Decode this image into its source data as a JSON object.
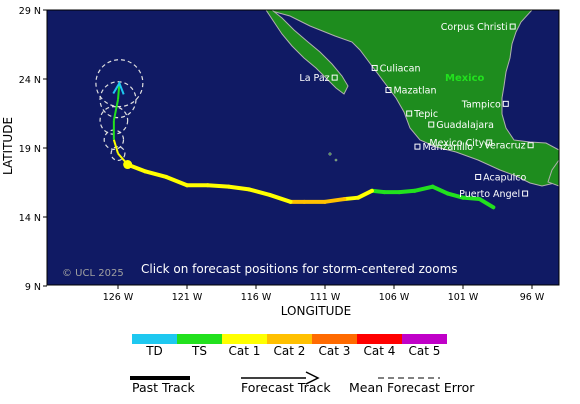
{
  "map": {
    "click_hint": "Click on forecast positions for storm-centered zooms",
    "copyright": "© UCL 2025",
    "xlabel": "LONGITUDE",
    "ylabel": "LATITUDE",
    "lat_ticks": [
      "29 N",
      "24 N",
      "19 N",
      "14 N",
      "9 N"
    ],
    "lon_ticks": [
      "126 W",
      "121 W",
      "116 W",
      "111 W",
      "106 W",
      "101 W",
      "96 W"
    ],
    "country_label": "Mexico",
    "colors": {
      "ocean": "#101a64",
      "land": "#1e8c1e",
      "coast": "#b0b0b0"
    },
    "cities": [
      {
        "name": "Corpus Christi",
        "lon": -97.4,
        "lat": 27.8
      },
      {
        "name": "Culiacan",
        "lon": -107.4,
        "lat": 24.8
      },
      {
        "name": "La Paz",
        "lon": -110.3,
        "lat": 24.1
      },
      {
        "name": "Mazatlan",
        "lon": -106.4,
        "lat": 23.2
      },
      {
        "name": "Tampico",
        "lon": -97.9,
        "lat": 22.2
      },
      {
        "name": "Tepic",
        "lon": -104.9,
        "lat": 21.5
      },
      {
        "name": "Guadalajara",
        "lon": -103.3,
        "lat": 20.7
      },
      {
        "name": "Mexico City",
        "lon": -99.1,
        "lat": 19.4
      },
      {
        "name": "Manzanillo",
        "lon": -104.3,
        "lat": 19.1
      },
      {
        "name": "Veracruz",
        "lon": -96.1,
        "lat": 19.2
      },
      {
        "name": "Acapulco",
        "lon": -99.9,
        "lat": 16.9
      },
      {
        "name": "Puerto Angel",
        "lon": -96.5,
        "lat": 15.7
      }
    ]
  },
  "track": {
    "past": [
      {
        "lon": -98.8,
        "lat": 14.7,
        "cat": "TS"
      },
      {
        "lon": -99.8,
        "lat": 15.3,
        "cat": "TS"
      },
      {
        "lon": -101.0,
        "lat": 15.4,
        "cat": "TS"
      },
      {
        "lon": -102.1,
        "lat": 15.7,
        "cat": "TS"
      },
      {
        "lon": -103.2,
        "lat": 16.2,
        "cat": "TS"
      },
      {
        "lon": -104.5,
        "lat": 15.9,
        "cat": "TS"
      },
      {
        "lon": -105.6,
        "lat": 15.8,
        "cat": "TS"
      },
      {
        "lon": -106.7,
        "lat": 15.8,
        "cat": "TS"
      },
      {
        "lon": -107.6,
        "lat": 15.9,
        "cat": "Cat 1"
      },
      {
        "lon": -108.6,
        "lat": 15.4,
        "cat": "Cat 1"
      },
      {
        "lon": -109.6,
        "lat": 15.3,
        "cat": "Cat 2"
      },
      {
        "lon": -111.0,
        "lat": 15.1,
        "cat": "Cat 2"
      },
      {
        "lon": -112.5,
        "lat": 15.1,
        "cat": "Cat 2"
      },
      {
        "lon": -113.5,
        "lat": 15.1,
        "cat": "Cat 1"
      },
      {
        "lon": -115.0,
        "lat": 15.6,
        "cat": "Cat 1"
      },
      {
        "lon": -116.5,
        "lat": 16.0,
        "cat": "Cat 1"
      },
      {
        "lon": -118.0,
        "lat": 16.2,
        "cat": "Cat 1"
      },
      {
        "lon": -119.5,
        "lat": 16.3,
        "cat": "Cat 1"
      },
      {
        "lon": -121.0,
        "lat": 16.3,
        "cat": "Cat 1"
      },
      {
        "lon": -122.5,
        "lat": 16.9,
        "cat": "Cat 1"
      },
      {
        "lon": -124.0,
        "lat": 17.3,
        "cat": "Cat 1"
      },
      {
        "lon": -125.3,
        "lat": 17.8,
        "cat": "Cat 1"
      }
    ],
    "current": {
      "lon": -125.3,
      "lat": 17.8
    },
    "forecast": [
      {
        "lon": -125.3,
        "lat": 17.8,
        "cat": "Cat 1",
        "err": 0
      },
      {
        "lon": -126.0,
        "lat": 18.6,
        "cat": "Cat 1",
        "err": 0.5
      },
      {
        "lon": -126.3,
        "lat": 19.6,
        "cat": "TS",
        "err": 0.7
      },
      {
        "lon": -126.3,
        "lat": 21.0,
        "cat": "TS",
        "err": 1.0
      },
      {
        "lon": -126.0,
        "lat": 22.5,
        "cat": "TS",
        "err": 1.3
      },
      {
        "lon": -125.9,
        "lat": 23.7,
        "cat": "TD",
        "err": 1.7
      }
    ]
  },
  "legend": {
    "categories": [
      {
        "label": "TD",
        "color": "#1ec8f0"
      },
      {
        "label": "TS",
        "color": "#22e11e"
      },
      {
        "label": "Cat 1",
        "color": "#ffff00"
      },
      {
        "label": "Cat 2",
        "color": "#ffc000"
      },
      {
        "label": "Cat 3",
        "color": "#ff6a00"
      },
      {
        "label": "Cat 4",
        "color": "#ff0000"
      },
      {
        "label": "Cat 5",
        "color": "#c000c8"
      }
    ],
    "past_track": "Past Track",
    "forecast_track": "Forecast Track",
    "mean_error": "Mean Forecast Error"
  }
}
